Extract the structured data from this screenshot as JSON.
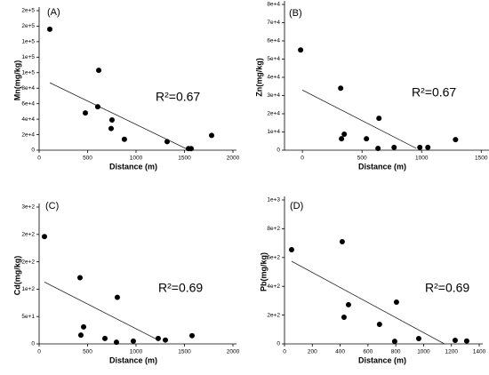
{
  "chart_data": [
    {
      "type": "scatter",
      "title": "(A)",
      "xlabel": "Distance (m)",
      "ylabel": "Mn(mg/kg)",
      "annotation": "R²=0.67",
      "xlim": [
        0,
        2000
      ],
      "xticks": [
        0,
        500,
        1000,
        1500,
        2000
      ],
      "ylim": [
        0,
        180000
      ],
      "yticks": [
        0,
        {
          "value": 20000,
          "label": "2e+4"
        },
        {
          "value": 40000,
          "label": "4e+4"
        },
        {
          "value": 60000,
          "label": "6e+4"
        },
        {
          "value": 80000,
          "label": "8e+4"
        },
        {
          "value": 100000,
          "label": "1e+5"
        },
        {
          "value": 120000,
          "label": "1e+5"
        },
        {
          "value": 140000,
          "label": "1e+5"
        },
        {
          "value": 160000,
          "label": "2e+5"
        },
        {
          "value": 180000,
          "label": "2e+5"
        }
      ],
      "color": "#000000",
      "x": [
        110,
        477,
        605,
        615,
        743,
        752,
        880,
        1321,
        1541,
        1569,
        1780
      ],
      "values": [
        156000,
        48000,
        56000,
        103000,
        28000,
        39000,
        14000,
        11000,
        2000,
        2000,
        19000
      ],
      "fit_line": {
        "x": [
          110,
          1532
        ],
        "y": [
          87000,
          1000
        ]
      }
    },
    {
      "type": "scatter",
      "title": "(B)",
      "xlabel": "Distance (m)",
      "ylabel": "Zn(mg/kg)",
      "annotation": "R²=0.67",
      "xlim": [
        -150,
        1550
      ],
      "xticks": [
        0,
        500,
        1000,
        1500
      ],
      "ylim": [
        0,
        80000
      ],
      "yticks": [
        0,
        {
          "value": 10000,
          "label": "1e+4"
        },
        {
          "value": 20000,
          "label": "2e+4"
        },
        {
          "value": 30000,
          "label": "3e+4"
        },
        {
          "value": 40000,
          "label": "4e+4"
        },
        {
          "value": 50000,
          "label": "5e+4"
        },
        {
          "value": 60000,
          "label": "6e+4"
        },
        {
          "value": 70000,
          "label": "7e+4"
        },
        {
          "value": 80000,
          "label": "8e+4"
        }
      ],
      "color": "#000000",
      "x": [
        -15,
        321,
        328,
        351,
        537,
        634,
        642,
        769,
        985,
        1052,
        1284
      ],
      "values": [
        55000,
        34000,
        6300,
        8800,
        6300,
        1000,
        17500,
        1500,
        1500,
        1500,
        5800
      ],
      "fit_line": {
        "x": [
          0,
          955
        ],
        "y": [
          33000,
          1000
        ]
      }
    },
    {
      "type": "scatter",
      "title": "(C)",
      "xlabel": "Distance (m)",
      "ylabel": "Cd(mg/kg)",
      "annotation": "R²=0.69",
      "xlim": [
        0,
        2000
      ],
      "xticks": [
        0,
        500,
        1000,
        1500,
        2000
      ],
      "ylim": [
        0,
        250
      ],
      "yticks": [
        0,
        {
          "value": 50,
          "label": "5e+1"
        },
        {
          "value": 100,
          "label": "1e+2"
        },
        {
          "value": 150,
          "label": "2e+2"
        },
        {
          "value": 200,
          "label": "2e+2"
        },
        {
          "value": 250,
          "label": "3e+2"
        }
      ],
      "color": "#000000",
      "x": [
        55,
        422,
        431,
        459,
        679,
        798,
        807,
        972,
        1229,
        1303,
        1578
      ],
      "values": [
        196,
        121,
        16,
        31,
        10,
        3,
        85,
        5,
        10,
        7,
        15
      ],
      "fit_line": {
        "x": [
          55,
          1229
        ],
        "y": [
          113,
          7
        ]
      }
    },
    {
      "type": "scatter",
      "title": "(D)",
      "xlabel": "Distance (m)",
      "ylabel": "Pb(mg/kg)",
      "annotation": "R²=0.69",
      "xlim": [
        0,
        1400
      ],
      "xticks": [
        0,
        200,
        400,
        600,
        800,
        1000,
        1200,
        1400
      ],
      "ylim": [
        0,
        1000
      ],
      "yticks": [
        0,
        {
          "value": 200,
          "label": "2e+2"
        },
        {
          "value": 400,
          "label": "4e+2"
        },
        {
          "value": 600,
          "label": "6e+2"
        },
        {
          "value": 800,
          "label": "8e+2"
        },
        {
          "value": 1000,
          "label": "1e+3"
        }
      ],
      "color": "#000000",
      "x": [
        51,
        415,
        428,
        460,
        683,
        792,
        805,
        965,
        1227,
        1310
      ],
      "values": [
        654,
        710,
        185,
        272,
        136,
        18,
        290,
        37,
        25,
        20
      ],
      "fit_line": {
        "x": [
          51,
          1150
        ],
        "y": [
          574,
          0
        ]
      }
    }
  ]
}
